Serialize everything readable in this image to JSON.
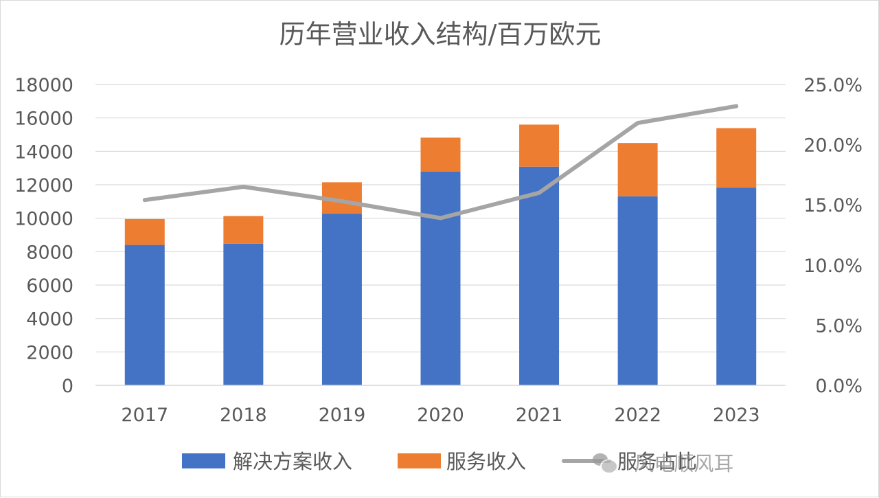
{
  "chart_data": {
    "type": "bar",
    "stacked": true,
    "title": "历年营业收入结构/百万欧元",
    "categories": [
      "2017",
      "2018",
      "2019",
      "2020",
      "2021",
      "2022",
      "2023"
    ],
    "series": [
      {
        "name": "解决方案收入",
        "type": "bar",
        "axis": "left",
        "color": "#4472C4",
        "values": [
          8400,
          8470,
          10270,
          12780,
          13080,
          11310,
          11830
        ]
      },
      {
        "name": "服务收入",
        "type": "bar",
        "axis": "left",
        "color": "#ED7D31",
        "values": [
          1550,
          1660,
          1880,
          2040,
          2520,
          3190,
          3560
        ]
      },
      {
        "name": "服务占比",
        "type": "line",
        "axis": "right",
        "color": "#A5A5A5",
        "values": [
          15.4,
          16.5,
          15.3,
          13.9,
          16.0,
          21.8,
          23.2
        ]
      }
    ],
    "y_left": {
      "min": 0,
      "max": 18000,
      "step": 2000,
      "ticks": [
        "0",
        "2000",
        "4000",
        "6000",
        "8000",
        "10000",
        "12000",
        "14000",
        "16000",
        "18000"
      ]
    },
    "y_right": {
      "min": 0,
      "max": 25,
      "step": 5,
      "ticks": [
        "0.0%",
        "5.0%",
        "10.0%",
        "15.0%",
        "20.0%",
        "25.0%"
      ]
    },
    "grid": true,
    "legend_position": "bottom"
  },
  "watermark": {
    "text": "· 风电顺风耳",
    "icon": "wechat-icon"
  }
}
